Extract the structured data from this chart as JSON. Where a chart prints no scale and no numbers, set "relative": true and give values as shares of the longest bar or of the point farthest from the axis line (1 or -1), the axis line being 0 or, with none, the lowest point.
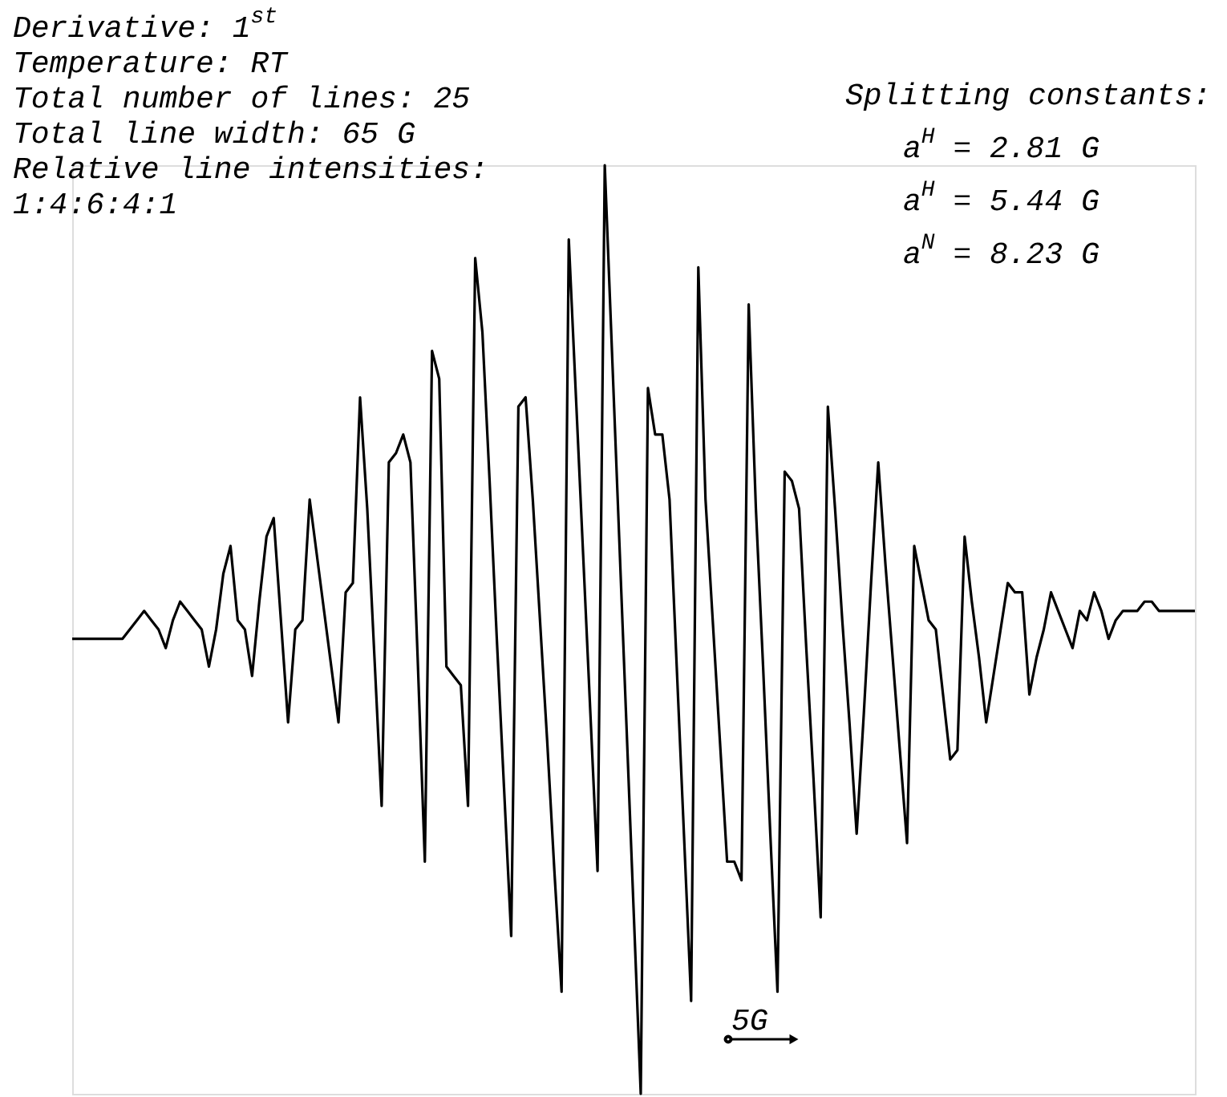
{
  "chart_data": {
    "type": "line",
    "relative": true,
    "tick_labels": false,
    "categories": [
      null,
      null,
      null,
      null,
      null,
      null,
      null,
      null,
      null,
      null,
      null,
      null,
      null,
      null,
      null,
      null,
      null,
      null,
      null,
      null,
      null,
      null,
      null,
      null,
      null,
      null,
      null,
      null,
      null,
      null,
      null,
      null,
      null,
      null,
      null,
      null,
      null,
      null,
      null,
      null,
      null,
      null,
      null,
      null,
      null,
      null,
      null,
      null,
      null,
      null,
      null,
      null,
      null,
      null,
      null,
      null,
      null,
      null,
      null,
      null,
      null,
      null,
      null,
      null,
      null,
      null,
      null,
      null,
      null,
      null,
      null,
      null,
      null,
      null,
      null,
      null,
      null,
      null,
      null,
      null,
      null,
      null,
      null,
      null,
      null,
      null,
      null,
      null,
      null,
      null,
      null,
      null,
      null,
      null,
      null,
      null,
      null,
      null,
      null,
      null,
      null,
      null,
      null,
      null,
      null,
      null,
      null,
      null,
      null,
      null,
      null,
      null,
      null,
      null,
      null,
      null,
      null,
      null,
      null,
      null,
      null,
      null,
      null,
      null,
      null,
      null,
      null,
      null,
      null,
      null,
      null,
      null,
      null,
      null,
      null,
      null,
      null,
      null,
      null,
      null,
      null,
      null,
      null,
      null,
      null,
      null,
      null,
      null,
      null,
      null,
      null,
      null,
      null,
      null,
      null,
      null,
      null
    ],
    "series": [
      {
        "color": "#000000",
        "values": [
          0.49,
          0.49,
          0.49,
          0.49,
          0.49,
          0.49,
          0.49,
          0.49,
          0.5,
          0.51,
          0.52,
          0.51,
          0.5,
          0.48,
          0.51,
          0.53,
          0.52,
          0.51,
          0.5,
          0.46,
          0.5,
          0.56,
          0.59,
          0.51,
          0.5,
          0.45,
          0.53,
          0.6,
          0.62,
          0.51,
          0.4,
          0.5,
          0.51,
          0.64,
          0.58,
          0.52,
          0.46,
          0.4,
          0.54,
          0.55,
          0.75,
          0.63,
          0.47,
          0.31,
          0.68,
          0.69,
          0.71,
          0.68,
          0.47,
          0.25,
          0.8,
          0.77,
          0.46,
          0.45,
          0.44,
          0.31,
          0.9,
          0.82,
          0.66,
          0.49,
          0.33,
          0.17,
          0.74,
          0.75,
          0.64,
          0.51,
          0.38,
          0.24,
          0.11,
          0.92,
          0.75,
          0.58,
          0.41,
          0.24,
          1.0,
          0.8,
          0.6,
          0.4,
          0.2,
          0.0,
          0.76,
          0.71,
          0.71,
          0.64,
          0.46,
          0.28,
          0.1,
          0.89,
          0.64,
          0.51,
          0.38,
          0.25,
          0.25,
          0.23,
          0.85,
          0.63,
          0.46,
          0.28,
          0.11,
          0.67,
          0.66,
          0.63,
          0.48,
          0.34,
          0.19,
          0.74,
          0.63,
          0.51,
          0.4,
          0.28,
          0.41,
          0.55,
          0.68,
          0.57,
          0.47,
          0.37,
          0.27,
          0.59,
          0.55,
          0.51,
          0.5,
          0.43,
          0.36,
          0.37,
          0.6,
          0.53,
          0.47,
          0.4,
          0.45,
          0.5,
          0.55,
          0.54,
          0.54,
          0.43,
          0.47,
          0.5,
          0.54,
          0.52,
          0.5,
          0.48,
          0.52,
          0.51,
          0.54,
          0.52,
          0.49,
          0.51,
          0.52,
          0.52,
          0.52,
          0.53,
          0.53,
          0.52,
          0.52,
          0.52,
          0.52,
          0.52,
          0.52
        ]
      }
    ],
    "annotations": [
      "Derivative: 1$^{st}$",
      "Temperature: RT",
      "Total number of lines: 25",
      "Total line width: 65 G",
      "Relative line intensities:",
      "1:4:6:4:1",
      "Splitting constants:",
      "a$^{H}$ = 2.81 G",
      "a$^{H}$ = 5.44 G",
      "a$^{N}$ = 8.23 G",
      "5G"
    ]
  }
}
